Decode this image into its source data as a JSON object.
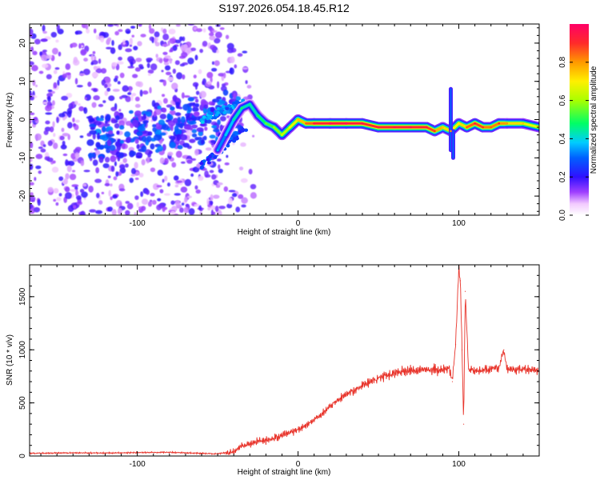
{
  "title": "S197.2026.054.18.45.R12",
  "colors": {
    "axis": "#000000",
    "snr_line": "#e8332a",
    "spectrogram_scatter": "#7b2fe0",
    "colormap": [
      "#f2c9ff",
      "#d77dff",
      "#8a2bff",
      "#1a14ff",
      "#0099ff",
      "#00e6ff",
      "#00ff66",
      "#b4ff00",
      "#ffea00",
      "#ff9a00",
      "#ff2a2a",
      "#ff0066"
    ]
  },
  "chart_data": [
    {
      "type": "heatmap",
      "name": "spectrogram",
      "xlabel": "Height of straight line (km)",
      "ylabel": "Frequency (Hz)",
      "xlim": [
        -167,
        150
      ],
      "ylim": [
        -25,
        25
      ],
      "x_ticks": [
        -100,
        0,
        100
      ],
      "x_tick_labels": [
        "-100",
        "0",
        "100"
      ],
      "y_ticks": [
        -20,
        -10,
        0,
        10,
        20
      ],
      "y_tick_labels": [
        "-20",
        "-10",
        "0",
        "10",
        "20"
      ],
      "ridge": {
        "x": [
          -50,
          -45,
          -40,
          -35,
          -30,
          -25,
          -20,
          -15,
          -10,
          -5,
          0,
          5,
          10,
          20,
          30,
          40,
          50,
          60,
          70,
          80,
          85,
          90,
          95,
          100,
          105,
          110,
          115,
          120,
          125,
          130,
          140,
          150
        ],
        "freq": [
          -8,
          -4,
          0,
          3,
          4,
          1,
          -1,
          -2,
          -4,
          -2,
          0,
          -1,
          -1,
          -1,
          -1,
          -1,
          -2,
          -2,
          -2,
          -2,
          -3,
          -2,
          -3,
          -1,
          -2,
          -1,
          -2,
          -2,
          -1,
          -1,
          -1,
          -2
        ],
        "amplitude": [
          0.3,
          0.35,
          0.4,
          0.45,
          0.4,
          0.45,
          0.5,
          0.55,
          0.6,
          0.65,
          0.7,
          0.8,
          0.9,
          0.95,
          0.95,
          0.92,
          0.9,
          0.92,
          0.93,
          0.9,
          0.85,
          0.7,
          0.75,
          0.65,
          0.8,
          0.9,
          0.85,
          0.8,
          0.85,
          0.75,
          0.7,
          0.65
        ]
      },
      "colorbar": {
        "label": "Normalized spectral amplitude",
        "range": [
          0,
          1
        ],
        "ticks": [
          0.0,
          0.2,
          0.4,
          0.6,
          0.8
        ],
        "tick_labels": [
          "0.0",
          "0.2",
          "0.4",
          "0.6",
          "0.8"
        ]
      }
    },
    {
      "type": "line",
      "name": "snr",
      "xlabel": "Height of straight line (km)",
      "ylabel": "SNR (10 * v/v)",
      "xlim": [
        -167,
        150
      ],
      "ylim": [
        0,
        1800
      ],
      "x_ticks": [
        -100,
        0,
        100
      ],
      "x_tick_labels": [
        "-100",
        "0",
        "100"
      ],
      "y_ticks": [
        0,
        500,
        1000,
        1500
      ],
      "y_tick_labels": [
        "0",
        "500",
        "1000",
        "1500"
      ],
      "series": [
        {
          "name": "SNR",
          "x": [
            -167,
            -140,
            -120,
            -100,
            -80,
            -60,
            -50,
            -40,
            -35,
            -30,
            -25,
            -20,
            -15,
            -10,
            -5,
            0,
            5,
            10,
            15,
            20,
            25,
            30,
            35,
            40,
            45,
            50,
            55,
            60,
            65,
            70,
            75,
            80,
            85,
            90,
            94,
            96,
            98,
            100,
            101,
            102,
            103,
            104,
            106,
            110,
            115,
            120,
            125,
            128,
            130,
            135,
            140,
            150
          ],
          "y": [
            25,
            30,
            28,
            32,
            35,
            25,
            20,
            40,
            100,
            110,
            140,
            150,
            165,
            195,
            220,
            250,
            290,
            340,
            400,
            470,
            530,
            580,
            620,
            660,
            700,
            735,
            760,
            780,
            795,
            800,
            805,
            810,
            820,
            810,
            830,
            700,
            1050,
            1780,
            1650,
            1000,
            300,
            1550,
            820,
            800,
            810,
            820,
            830,
            1000,
            820,
            810,
            815,
            800
          ]
        }
      ]
    }
  ]
}
